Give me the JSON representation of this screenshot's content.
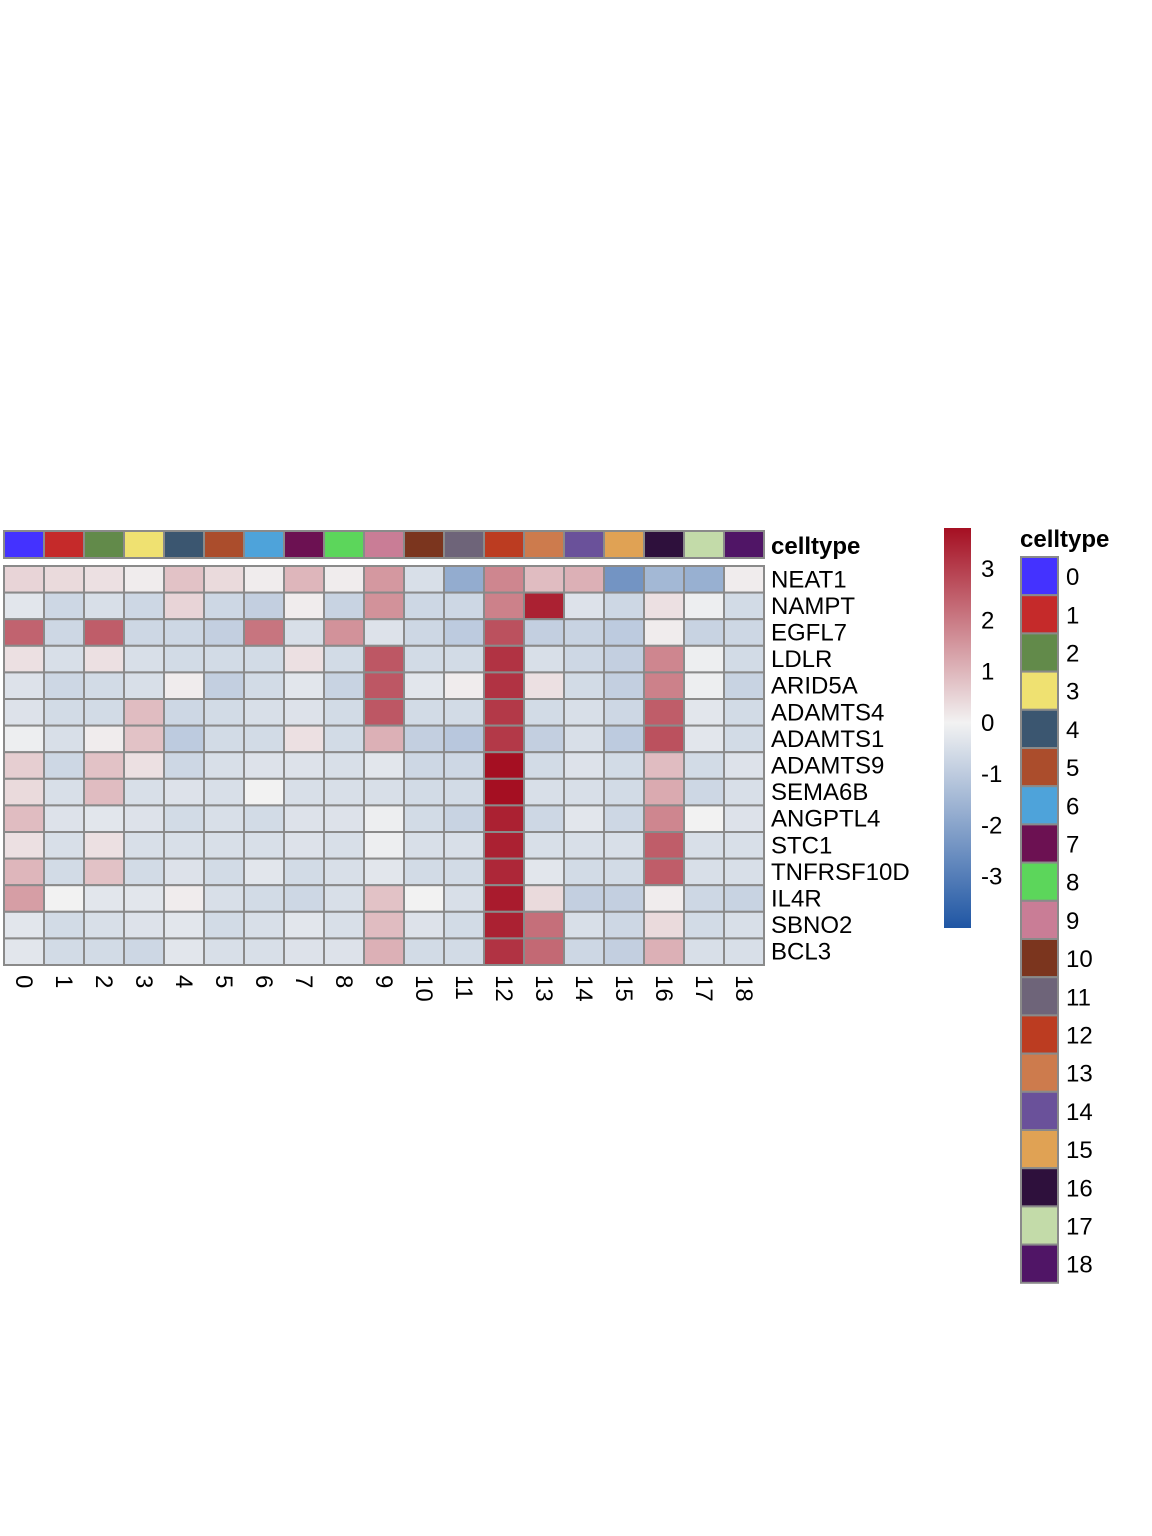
{
  "chart_data": {
    "type": "heatmap",
    "columns": [
      "0",
      "1",
      "2",
      "3",
      "4",
      "5",
      "6",
      "7",
      "8",
      "9",
      "10",
      "11",
      "12",
      "13",
      "14",
      "15",
      "16",
      "17",
      "18"
    ],
    "rows": [
      "NEAT1",
      "NAMPT",
      "EGFL7",
      "LDLR",
      "ARID5A",
      "ADAMTS4",
      "ADAMTS1",
      "ADAMTS9",
      "SEMA6B",
      "ANGPTL4",
      "STC1",
      "TNFRSF10D",
      "IL4R",
      "SBNO2",
      "BCL3"
    ],
    "values": [
      [
        0.5,
        0.4,
        0.3,
        0.1,
        0.8,
        0.4,
        0.1,
        1.0,
        0.1,
        1.5,
        -0.5,
        -1.8,
        1.8,
        0.9,
        1.1,
        -2.4,
        -1.5,
        -1.7,
        0.1
      ],
      [
        -0.3,
        -0.7,
        -0.5,
        -0.7,
        0.5,
        -0.7,
        -0.9,
        0.1,
        -0.8,
        1.6,
        -0.7,
        -0.7,
        1.9,
        3.5,
        -0.4,
        -0.7,
        0.3,
        -0.1,
        -0.6
      ],
      [
        2.4,
        -0.7,
        2.5,
        -0.7,
        -0.7,
        -0.9,
        2.1,
        -0.5,
        1.6,
        -0.4,
        -0.7,
        -1.0,
        2.7,
        -0.9,
        -0.8,
        -1.0,
        0.1,
        -0.8,
        -0.7
      ],
      [
        0.3,
        -0.5,
        0.3,
        -0.5,
        -0.6,
        -0.6,
        -0.6,
        0.3,
        -0.6,
        2.6,
        -0.6,
        -0.6,
        3.2,
        -0.5,
        -0.7,
        -0.9,
        1.8,
        -0.1,
        -0.6
      ],
      [
        -0.4,
        -0.7,
        -0.6,
        -0.5,
        0.1,
        -0.9,
        -0.6,
        -0.3,
        -0.8,
        2.6,
        -0.3,
        0.1,
        3.2,
        0.3,
        -0.6,
        -0.9,
        1.9,
        -0.1,
        -0.8
      ],
      [
        -0.4,
        -0.6,
        -0.6,
        0.9,
        -0.7,
        -0.6,
        -0.5,
        -0.4,
        -0.6,
        2.6,
        -0.6,
        -0.6,
        3.1,
        -0.6,
        -0.5,
        -0.7,
        2.5,
        -0.3,
        -0.6
      ],
      [
        -0.1,
        -0.5,
        0.1,
        0.8,
        -1.0,
        -0.6,
        -0.6,
        0.3,
        -0.6,
        1.1,
        -0.9,
        -1.1,
        3.1,
        -0.9,
        -0.5,
        -1.0,
        2.7,
        -0.3,
        -0.6
      ],
      [
        0.6,
        -0.7,
        0.8,
        0.3,
        -0.7,
        -0.5,
        -0.4,
        -0.4,
        -0.5,
        -0.3,
        -0.7,
        -0.7,
        3.8,
        -0.6,
        -0.4,
        -0.6,
        0.9,
        -0.6,
        -0.4
      ],
      [
        0.4,
        -0.5,
        0.9,
        -0.5,
        -0.4,
        -0.5,
        0.0,
        -0.5,
        -0.5,
        -0.5,
        -0.6,
        -0.6,
        3.8,
        -0.5,
        -0.5,
        -0.6,
        1.2,
        -0.7,
        -0.5
      ],
      [
        0.9,
        -0.4,
        -0.3,
        -0.4,
        -0.6,
        -0.5,
        -0.6,
        -0.4,
        -0.4,
        -0.1,
        -0.6,
        -0.8,
        3.5,
        -0.7,
        -0.3,
        -0.7,
        1.8,
        0.0,
        -0.4
      ],
      [
        0.3,
        -0.5,
        0.3,
        -0.5,
        -0.5,
        -0.5,
        -0.5,
        -0.4,
        -0.5,
        -0.1,
        -0.5,
        -0.5,
        3.5,
        -0.5,
        -0.5,
        -0.5,
        2.5,
        -0.5,
        -0.5
      ],
      [
        1.0,
        -0.6,
        0.8,
        -0.6,
        -0.4,
        -0.6,
        -0.3,
        -0.6,
        -0.5,
        -0.3,
        -0.6,
        -0.6,
        3.4,
        -0.3,
        -0.6,
        -0.6,
        2.5,
        -0.5,
        -0.5
      ],
      [
        1.4,
        0.0,
        -0.3,
        -0.3,
        0.1,
        -0.5,
        -0.6,
        -0.7,
        -0.5,
        0.8,
        0.0,
        -0.5,
        3.6,
        0.4,
        -0.9,
        -0.9,
        0.1,
        -0.7,
        -0.8
      ],
      [
        -0.3,
        -0.6,
        -0.5,
        -0.4,
        -0.3,
        -0.6,
        -0.5,
        -0.3,
        -0.5,
        0.9,
        -0.4,
        -0.6,
        3.5,
        2.2,
        -0.5,
        -0.7,
        0.4,
        -0.6,
        -0.5
      ],
      [
        -0.3,
        -0.6,
        -0.6,
        -0.7,
        -0.3,
        -0.5,
        -0.5,
        -0.4,
        -0.4,
        1.1,
        -0.6,
        -0.6,
        3.2,
        2.3,
        -0.7,
        -0.9,
        1.1,
        -0.5,
        -0.5
      ]
    ],
    "col_annotation": {
      "title": "celltype",
      "colors": [
        "#4432FF",
        "#C52A2A",
        "#628A4A",
        "#EFE171",
        "#3B5670",
        "#AB4D2C",
        "#4EA3DA",
        "#6C1152",
        "#5CD65B",
        "#C97D96",
        "#7B351E",
        "#6E6479",
        "#BC3C21",
        "#CD7B4D",
        "#6A519A",
        "#E0A254",
        "#2E103C",
        "#C3DBA9",
        "#501566"
      ]
    },
    "color_scale": {
      "low_color": "#1F56A4",
      "mid_color": "#F2F2F2",
      "high_color": "#A50F22",
      "range": [
        -4,
        3.8
      ],
      "ticks": [
        "3",
        "2",
        "1",
        "0",
        "-1",
        "-2",
        "-3"
      ],
      "tick_values": [
        3,
        2,
        1,
        0,
        -1,
        -2,
        -3
      ]
    },
    "legend": {
      "title": "celltype",
      "items": [
        "0",
        "1",
        "2",
        "3",
        "4",
        "5",
        "6",
        "7",
        "8",
        "9",
        "10",
        "11",
        "12",
        "13",
        "14",
        "15",
        "16",
        "17",
        "18"
      ]
    }
  }
}
